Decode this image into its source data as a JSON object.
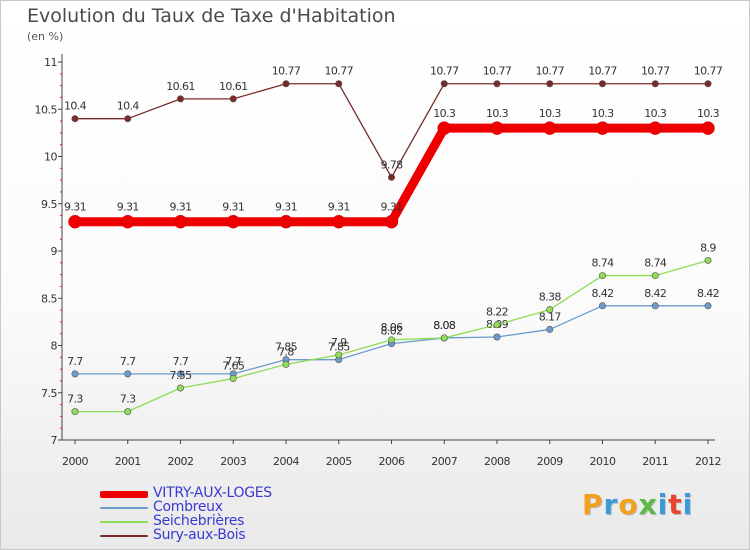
{
  "title": "Evolution du Taux de Taxe d'Habitation",
  "subtitle": "(en %)",
  "logo": {
    "text": "Proxiti",
    "colors": [
      "#f2a11f",
      "#3b9bd8",
      "#f2a11f",
      "#5bb944",
      "#3b9bd8",
      "#e8452c",
      "#3b9bd8"
    ]
  },
  "chart_data": {
    "type": "line",
    "categories": [
      "2000",
      "2001",
      "2002",
      "2003",
      "2004",
      "2005",
      "2006",
      "2007",
      "2008",
      "2009",
      "2010",
      "2011",
      "2012"
    ],
    "ylim": [
      7,
      11
    ],
    "yticks": [
      7,
      7.5,
      8,
      8.5,
      9,
      9.5,
      10,
      10.5,
      11
    ],
    "ytick_labels": [
      "7",
      "7.5",
      "8",
      "8.5",
      "9",
      "9.5",
      "10",
      "10.5",
      "11"
    ],
    "grid": false,
    "legend_position": "bottom-left",
    "series": [
      {
        "name": "VITRY-AUX-LOGES",
        "color": "#ee0000",
        "values": [
          9.31,
          9.31,
          9.31,
          9.31,
          9.31,
          9.31,
          9.31,
          10.3,
          10.3,
          10.3,
          10.3,
          10.3,
          10.3
        ],
        "labels": [
          "9.31",
          "9.31",
          "9.31",
          "9.31",
          "9.31",
          "9.31",
          "9.31",
          "10.3",
          "10.3",
          "10.3",
          "10.3",
          "10.3",
          "10.3"
        ]
      },
      {
        "name": "Combreux",
        "color": "#6b9ccc",
        "values": [
          7.7,
          7.7,
          7.7,
          7.7,
          7.85,
          7.85,
          8.02,
          8.08,
          8.09,
          8.17,
          8.42,
          8.42,
          8.42
        ],
        "labels": [
          "7.7",
          "7.7",
          "7.7",
          "7.7",
          "7.85",
          "7.85",
          "8.02",
          "8.08",
          "8.09",
          "8.17",
          "8.42",
          "8.42",
          "8.42"
        ]
      },
      {
        "name": "Seichebrières",
        "color": "#8fdc58",
        "values": [
          7.3,
          7.3,
          7.55,
          7.65,
          7.8,
          7.9,
          8.06,
          8.08,
          8.22,
          8.38,
          8.74,
          8.74,
          8.9
        ],
        "labels": [
          "7.3",
          "7.3",
          "7.55",
          "7.65",
          "7.8",
          "7.9",
          "8.06",
          "8.08",
          "8.22",
          "8.38",
          "8.74",
          "8.74",
          "8.9"
        ]
      },
      {
        "name": "Sury-aux-Bois",
        "color": "#7a2a2a",
        "values": [
          10.4,
          10.4,
          10.61,
          10.61,
          10.77,
          10.77,
          9.78,
          10.77,
          10.77,
          10.77,
          10.77,
          10.77,
          10.77
        ],
        "labels": [
          "10.4",
          "10.4",
          "10.61",
          "10.61",
          "10.77",
          "10.77",
          "9.78",
          "10.77",
          "10.77",
          "10.77",
          "10.77",
          "10.77",
          "10.77"
        ]
      }
    ]
  }
}
